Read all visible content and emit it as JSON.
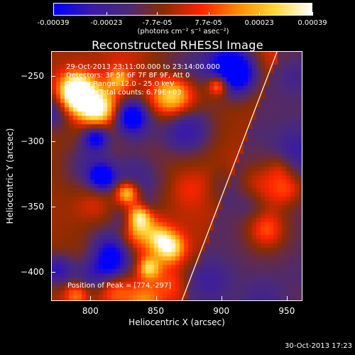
{
  "chart_data": {
    "type": "heatmap",
    "title": "Reconstructed RHESSI Image",
    "xlabel": "Heliocentric X (arcsec)",
    "ylabel": "Heliocentric Y (arcsec)",
    "xlim": [
      770,
      962
    ],
    "ylim": [
      -422,
      -231
    ],
    "x_ticks": [
      800,
      850,
      900,
      950
    ],
    "y_ticks": [
      -250,
      -300,
      -350,
      -400
    ],
    "x_tick_labels": [
      "800",
      "850",
      "900",
      "950"
    ],
    "y_tick_labels": [
      "-250",
      "-300",
      "-350",
      "-400"
    ],
    "colorbar": {
      "range": [
        -0.00039,
        0.00039
      ],
      "ticks": [
        -0.00039,
        -0.00023,
        -7.7e-05,
        7.7e-05,
        0.00023,
        0.00039
      ],
      "tick_labels": [
        "-0.00039",
        "-0.00023",
        "-7.7e-05",
        "7.7e-05",
        "0.00023",
        "0.00039"
      ],
      "label": "(photons cm⁻² s⁻¹ asec⁻²)",
      "colormap": [
        "#0000ff",
        "#3a1aa8",
        "#4a2a78",
        "#8a2c00",
        "#ff2400",
        "#ff8a00",
        "#ffd83a",
        "#ffffff"
      ]
    },
    "info": {
      "time_range": "29-Oct-2013 23:11:00.000 to 23:14:00.000",
      "detectors": "Detectors: 3F 5F 6F 7F 8F 9F, Att 0",
      "energy": "Energy Range: 12.0 - 25.0 keV",
      "clean_label": "Clean",
      "total_counts": "Total counts: 6.79E+03"
    },
    "peak": {
      "x": 774,
      "y": -297,
      "label": "Position of Peak = [774,-297]"
    },
    "limb_line": {
      "points": [
        [
          869,
          -422
        ],
        [
          942,
          -231
        ]
      ]
    },
    "grid": false
  },
  "footer": {
    "timestamp": "30-Oct-2013 17:23"
  }
}
